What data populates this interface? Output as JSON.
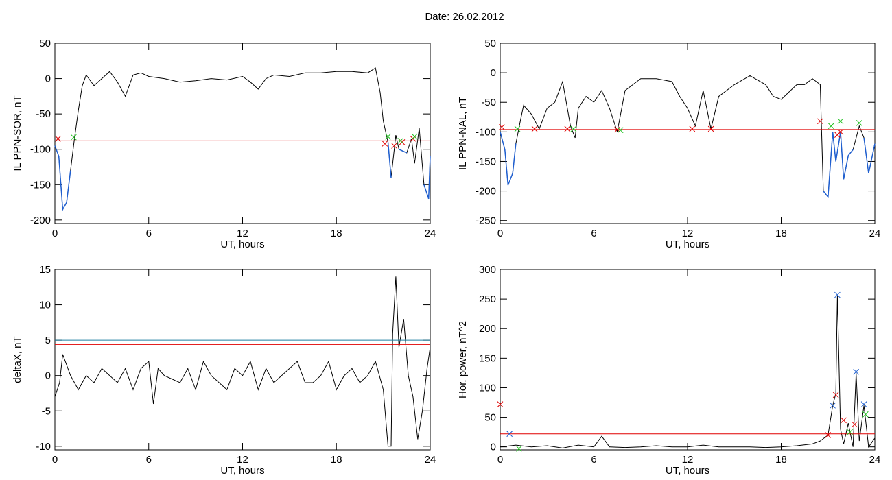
{
  "title": "Date:  26.02.2012",
  "chart_data": [
    {
      "type": "line",
      "xlabel": "UT, hours",
      "ylabel": "IL PPN-SOR, nT",
      "xlim": [
        0,
        24
      ],
      "xticks": [
        0,
        6,
        12,
        18,
        24
      ],
      "ylim": [
        -205,
        50
      ],
      "yticks": [
        50,
        0,
        -50,
        -100,
        -150,
        -200
      ],
      "threshold": -88,
      "threshold_color": "#e00000",
      "below_color": "#1f5fd0",
      "series": [
        {
          "color": "#000000",
          "x": [
            0,
            0.25,
            0.5,
            0.75,
            1,
            1.25,
            1.5,
            1.75,
            2,
            2.5,
            3,
            3.5,
            4,
            4.5,
            5,
            5.5,
            6,
            7,
            8,
            9,
            10,
            11,
            12,
            12.5,
            13,
            13.5,
            14,
            15,
            16,
            17,
            18,
            19,
            20,
            20.5,
            20.8,
            21,
            21.3,
            21.5,
            21.8,
            22,
            22.5,
            22.8,
            23,
            23.3,
            23.6,
            23.9,
            24
          ],
          "values": [
            -95,
            -110,
            -185,
            -175,
            -130,
            -85,
            -45,
            -10,
            5,
            -10,
            0,
            10,
            -5,
            -25,
            5,
            8,
            3,
            0,
            -5,
            -3,
            0,
            -2,
            3,
            -5,
            -15,
            0,
            5,
            3,
            8,
            8,
            10,
            10,
            8,
            15,
            -20,
            -60,
            -90,
            -140,
            -80,
            -100,
            -105,
            -85,
            -120,
            -70,
            -150,
            -170,
            -110
          ]
        }
      ],
      "hlines": [],
      "markers": [
        {
          "x": 0.2,
          "y": -85,
          "color": "#e00000"
        },
        {
          "x": 21.1,
          "y": -92,
          "color": "#e00000"
        },
        {
          "x": 21.7,
          "y": -95,
          "color": "#e00000"
        },
        {
          "x": 22.2,
          "y": -90,
          "color": "#e00000"
        },
        {
          "x": 22.9,
          "y": -85,
          "color": "#e00000"
        },
        {
          "x": 1.2,
          "y": -83,
          "color": "#20c020"
        },
        {
          "x": 21.3,
          "y": -82,
          "color": "#20c020"
        },
        {
          "x": 22.1,
          "y": -88,
          "color": "#20c020"
        },
        {
          "x": 23,
          "y": -82,
          "color": "#20c020"
        }
      ]
    },
    {
      "type": "line",
      "xlabel": "UT, hours",
      "ylabel": "IL PPN-NAL, nT",
      "xlim": [
        0,
        24
      ],
      "xticks": [
        0,
        6,
        12,
        18,
        24
      ],
      "ylim": [
        -255,
        50
      ],
      "yticks": [
        50,
        0,
        -50,
        -100,
        -150,
        -200,
        -250
      ],
      "threshold": -96,
      "threshold_color": "#e00000",
      "below_color": "#1f5fd0",
      "series": [
        {
          "color": "#000000",
          "x": [
            0,
            0.3,
            0.5,
            0.8,
            1,
            1.3,
            1.5,
            2,
            2.5,
            3,
            3.5,
            4,
            4.5,
            4.8,
            5,
            5.5,
            6,
            6.5,
            7,
            7.5,
            8,
            8.5,
            9,
            10,
            11,
            11.5,
            12,
            12.5,
            13,
            13.5,
            14,
            15,
            16,
            17,
            17.5,
            18,
            19,
            19.5,
            20,
            20.5,
            20.7,
            21,
            21.3,
            21.5,
            21.8,
            22,
            22.3,
            22.6,
            23,
            23.3,
            23.6,
            24
          ],
          "values": [
            -100,
            -130,
            -190,
            -170,
            -120,
            -80,
            -55,
            -70,
            -95,
            -60,
            -50,
            -15,
            -90,
            -110,
            -60,
            -40,
            -50,
            -30,
            -60,
            -100,
            -30,
            -20,
            -10,
            -10,
            -15,
            -40,
            -60,
            -90,
            -30,
            -95,
            -40,
            -20,
            -5,
            -20,
            -40,
            -45,
            -20,
            -20,
            -10,
            -20,
            -200,
            -210,
            -100,
            -150,
            -100,
            -180,
            -140,
            -130,
            -90,
            -110,
            -170,
            -120
          ]
        }
      ],
      "hlines": [],
      "markers": [
        {
          "x": 0.1,
          "y": -92,
          "color": "#e00000"
        },
        {
          "x": 2.2,
          "y": -95,
          "color": "#e00000"
        },
        {
          "x": 4.3,
          "y": -95,
          "color": "#e00000"
        },
        {
          "x": 7.5,
          "y": -96,
          "color": "#e00000"
        },
        {
          "x": 12.3,
          "y": -95,
          "color": "#e00000"
        },
        {
          "x": 13.5,
          "y": -95,
          "color": "#e00000"
        },
        {
          "x": 20.5,
          "y": -82,
          "color": "#e00000"
        },
        {
          "x": 21.6,
          "y": -105,
          "color": "#e00000"
        },
        {
          "x": 21.8,
          "y": -100,
          "color": "#e00000"
        },
        {
          "x": 1.1,
          "y": -95,
          "color": "#20c020"
        },
        {
          "x": 4.7,
          "y": -95,
          "color": "#20c020"
        },
        {
          "x": 7.7,
          "y": -97,
          "color": "#20c020"
        },
        {
          "x": 21.2,
          "y": -90,
          "color": "#20c020"
        },
        {
          "x": 21.8,
          "y": -82,
          "color": "#20c020"
        },
        {
          "x": 23,
          "y": -85,
          "color": "#20c020"
        }
      ]
    },
    {
      "type": "line",
      "xlabel": "UT, hours",
      "ylabel": "deltaX, nT",
      "xlim": [
        0,
        24
      ],
      "xticks": [
        0,
        6,
        12,
        18,
        24
      ],
      "ylim": [
        -10.5,
        15
      ],
      "yticks": [
        15,
        10,
        5,
        0,
        -5,
        -10
      ],
      "series": [
        {
          "color": "#000000",
          "x": [
            0,
            0.3,
            0.5,
            1,
            1.5,
            2,
            2.5,
            3,
            4,
            4.5,
            5,
            5.5,
            6,
            6.3,
            6.6,
            7,
            8,
            8.5,
            9,
            9.5,
            10,
            11,
            11.5,
            12,
            12.5,
            13,
            13.5,
            14,
            15,
            15.5,
            16,
            16.5,
            17,
            17.5,
            18,
            18.5,
            19,
            19.5,
            20,
            20.5,
            21,
            21.3,
            21.5,
            21.6,
            21.8,
            22,
            22.3,
            22.6,
            22.9,
            23.2,
            23.5,
            23.8,
            24
          ],
          "values": [
            -3,
            -1,
            3,
            0,
            -2,
            0,
            -1,
            1,
            -1,
            1,
            -2,
            1,
            2,
            -4,
            1,
            0,
            -1,
            1,
            -2,
            2,
            0,
            -2,
            1,
            0,
            2,
            -2,
            1,
            -1,
            1,
            2,
            -1,
            -1,
            0,
            2,
            -2,
            0,
            1,
            -1,
            0,
            2,
            -2,
            -10,
            -10,
            6,
            14,
            4,
            8,
            0,
            -3,
            -9,
            -5,
            1,
            4
          ]
        }
      ],
      "hlines": [
        {
          "value": 5,
          "color": "#1f7fa0"
        },
        {
          "value": 4.4,
          "color": "#e00000"
        }
      ],
      "markers": []
    },
    {
      "type": "line",
      "xlabel": "UT, hours",
      "ylabel": "Hor. power, nT^2",
      "xlim": [
        0,
        24
      ],
      "xticks": [
        0,
        6,
        12,
        18,
        24
      ],
      "ylim": [
        -5,
        300
      ],
      "yticks": [
        300,
        250,
        200,
        150,
        100,
        50,
        0
      ],
      "series": [
        {
          "color": "#000000",
          "x": [
            0,
            1,
            2,
            3,
            4,
            5,
            6,
            6.5,
            7,
            8,
            9,
            10,
            11,
            12,
            13,
            14,
            15,
            16,
            17,
            18,
            19,
            20,
            20.5,
            21,
            21.3,
            21.5,
            21.6,
            21.8,
            22,
            22.3,
            22.6,
            22.8,
            23,
            23.3,
            23.6,
            24
          ],
          "values": [
            0,
            3,
            0,
            2,
            -2,
            3,
            0,
            18,
            0,
            -1,
            0,
            2,
            0,
            0,
            3,
            0,
            0,
            0,
            -1,
            0,
            2,
            5,
            10,
            20,
            70,
            90,
            255,
            30,
            5,
            40,
            0,
            125,
            10,
            70,
            0,
            15
          ]
        }
      ],
      "hlines": [
        {
          "value": 22,
          "color": "#e00000"
        }
      ],
      "markers": [
        {
          "x": 0.6,
          "y": 22,
          "color": "#2060d0"
        },
        {
          "x": 21.3,
          "y": 70,
          "color": "#2060d0"
        },
        {
          "x": 21.6,
          "y": 257,
          "color": "#2060d0"
        },
        {
          "x": 22.8,
          "y": 127,
          "color": "#2060d0"
        },
        {
          "x": 23.3,
          "y": 72,
          "color": "#2060d0"
        },
        {
          "x": 0,
          "y": 72,
          "color": "#e00000"
        },
        {
          "x": 21,
          "y": 20,
          "color": "#e00000"
        },
        {
          "x": 21.5,
          "y": 88,
          "color": "#e00000"
        },
        {
          "x": 22,
          "y": 45,
          "color": "#e00000"
        },
        {
          "x": 22.7,
          "y": 38,
          "color": "#e00000"
        },
        {
          "x": 1.2,
          "y": -3,
          "color": "#20c020"
        },
        {
          "x": 22.4,
          "y": 25,
          "color": "#20c020"
        },
        {
          "x": 23.4,
          "y": 55,
          "color": "#20c020"
        }
      ]
    }
  ]
}
